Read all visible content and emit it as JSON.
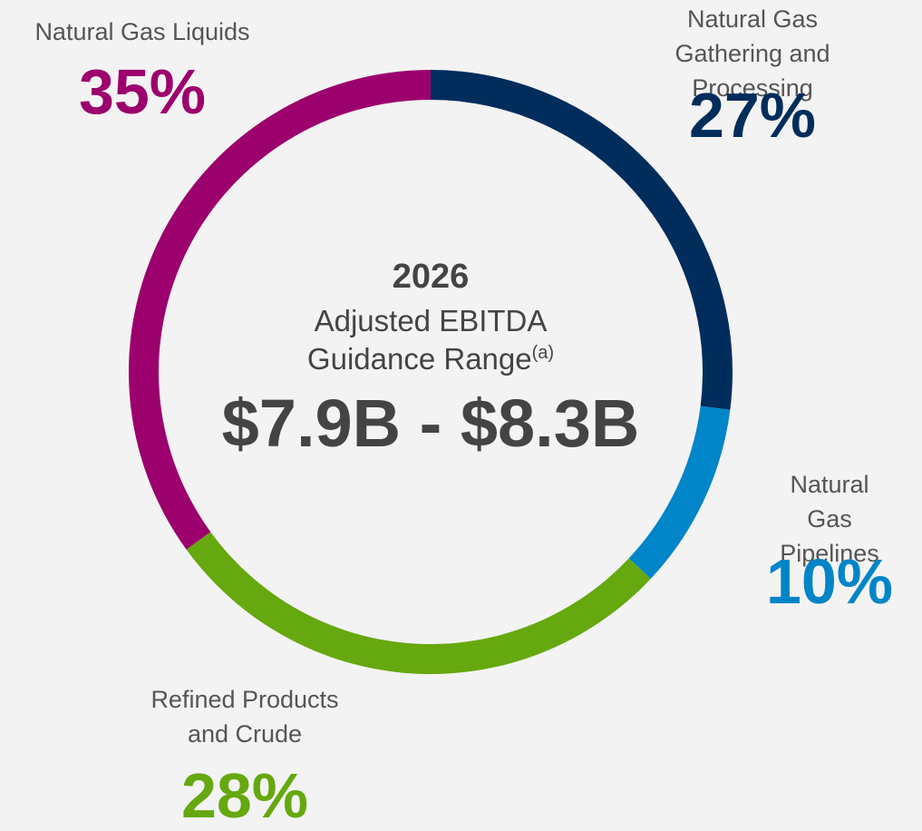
{
  "chart_data": {
    "type": "donut",
    "categories": [
      "Natural Gas\nGathering and Processing",
      "Natural Gas\nPipelines",
      "Refined Products\nand Crude",
      "Natural Gas Liquids"
    ],
    "values": [
      27,
      10,
      28,
      35
    ],
    "value_labels": [
      "27%",
      "10%",
      "28%",
      "35%"
    ],
    "colors": [
      "#002d5c",
      "#0085c8",
      "#66a80f",
      "#9c006d"
    ],
    "center": {
      "year": "2026",
      "line1": "Adjusted EBITDA",
      "line2": "Guidance Range",
      "footnote": "(a)",
      "range": "$7.9B - $8.3B"
    }
  }
}
